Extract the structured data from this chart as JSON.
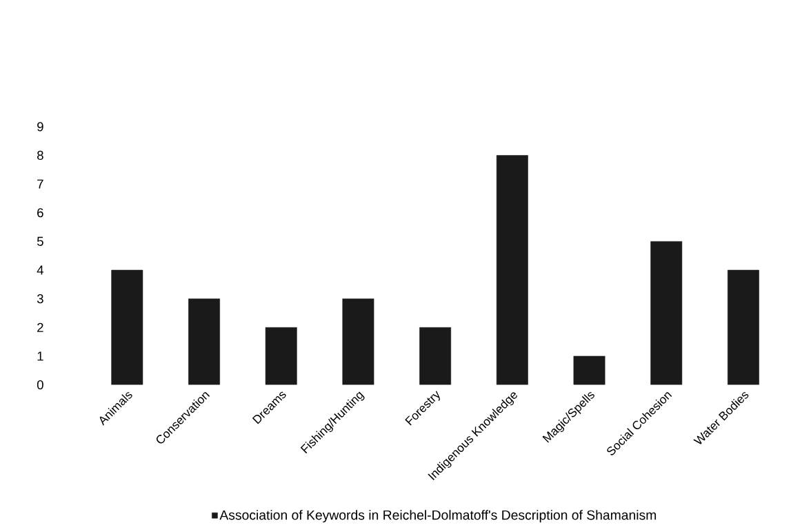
{
  "chart_data": {
    "type": "bar",
    "categories": [
      "Animals",
      "Conservation",
      "Dreams",
      "Fishing/Hunting",
      "Forestry",
      "Indigenous Knowledge",
      "Magic/Spells",
      "Social Cohesion",
      "Water Bodies"
    ],
    "series": [
      {
        "name": "Association of Keywords in Reichel-Dolmatoff's Description of Shamanism",
        "color": "#1a1a1a",
        "values": [
          4,
          3,
          2,
          3,
          2,
          8,
          1,
          5,
          4
        ]
      }
    ],
    "ylim": [
      0,
      9
    ],
    "yticks": [
      0,
      1,
      2,
      3,
      4,
      5,
      6,
      7,
      8,
      9
    ],
    "legend": "bottom"
  }
}
